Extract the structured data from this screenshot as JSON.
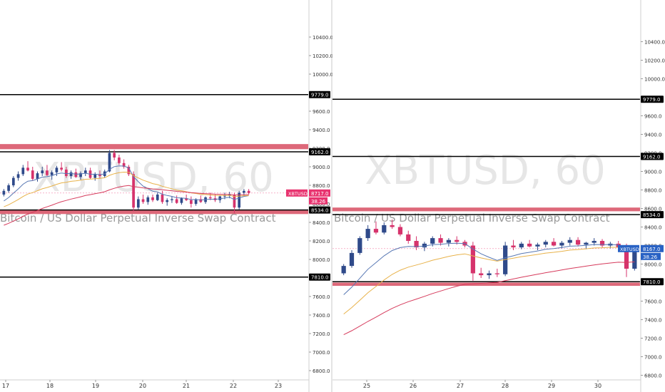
{
  "colors": {
    "up": "#2f4a8a",
    "down": "#d6336c",
    "ema_blue": "#5878b4",
    "ema_orange": "#e8b24a",
    "ema_red": "#d63b5c",
    "zone": "#d9586a",
    "level_line": "#000000",
    "tag_black": "#000000",
    "tag_pink": "#e8336f",
    "tag_blue": "#2962c4",
    "watermark": "#e6e6e6"
  },
  "icons": {
    "candle": "candlestick-icon"
  },
  "chart_data": [
    {
      "type": "candlestick",
      "watermark": "XBTUSD, 60",
      "subtitle": "Bitcoin / US Dollar Perpetual Inverse Swap Contract",
      "ylim": [
        6700,
        10800
      ],
      "yticks": [
        "10400.0",
        "10200.0",
        "10000.0",
        "9600.0",
        "9400.0",
        "9200.0",
        "9000.0",
        "8800.0",
        "8600.0",
        "8400.0",
        "8200.0",
        "8000.0",
        "7600.0",
        "7400.0",
        "7200.0",
        "7000.0",
        "6800.0"
      ],
      "xticks": [
        "17",
        "18",
        "19",
        "20",
        "21",
        "22",
        "23"
      ],
      "levels": [
        {
          "label": "9779.0",
          "value": 9779
        },
        {
          "label": "9162.0",
          "value": 9162
        },
        {
          "label": "8534.0",
          "value": 8534
        },
        {
          "label": "7810.0",
          "value": 7810
        }
      ],
      "zones": [
        [
          9190,
          9245
        ],
        [
          8490,
          8530
        ]
      ],
      "price_tag": {
        "symbol": "XBTUSD",
        "price": "8717.0",
        "sub": "38.26",
        "value": 8717
      },
      "candles": [
        [
          8700,
          8760,
          8680,
          8740
        ],
        [
          8740,
          8820,
          8720,
          8800
        ],
        [
          8800,
          8900,
          8780,
          8880
        ],
        [
          8880,
          8950,
          8850,
          8920
        ],
        [
          8920,
          9020,
          8900,
          8990
        ],
        [
          8990,
          9060,
          8950,
          8960
        ],
        [
          8960,
          9000,
          8850,
          8870
        ],
        [
          8870,
          8950,
          8840,
          8930
        ],
        [
          8930,
          9000,
          8900,
          8960
        ],
        [
          8960,
          9020,
          8900,
          8910
        ],
        [
          8910,
          8960,
          8860,
          8940
        ],
        [
          8940,
          9010,
          8900,
          8990
        ],
        [
          8990,
          9050,
          8950,
          8970
        ],
        [
          8970,
          9000,
          8880,
          8900
        ],
        [
          8900,
          8960,
          8870,
          8940
        ],
        [
          8940,
          8980,
          8880,
          8890
        ],
        [
          8890,
          8950,
          8860,
          8930
        ],
        [
          8930,
          8990,
          8900,
          8960
        ],
        [
          8960,
          8990,
          8870,
          8880
        ],
        [
          8880,
          8940,
          8850,
          8920
        ],
        [
          8920,
          8960,
          8870,
          8900
        ],
        [
          8900,
          8970,
          8880,
          8950
        ],
        [
          8950,
          9180,
          8940,
          9150
        ],
        [
          9150,
          9180,
          9070,
          9100
        ],
        [
          9100,
          9130,
          9020,
          9040
        ],
        [
          9040,
          9080,
          8980,
          9000
        ],
        [
          9000,
          9020,
          8900,
          8920
        ],
        [
          8920,
          8950,
          8520,
          8560
        ],
        [
          8560,
          8680,
          8540,
          8650
        ],
        [
          8650,
          8700,
          8600,
          8620
        ],
        [
          8620,
          8690,
          8590,
          8670
        ],
        [
          8670,
          8700,
          8620,
          8640
        ],
        [
          8640,
          8720,
          8630,
          8700
        ],
        [
          8700,
          8740,
          8600,
          8620
        ],
        [
          8620,
          8660,
          8580,
          8640
        ],
        [
          8640,
          8680,
          8610,
          8650
        ],
        [
          8650,
          8690,
          8600,
          8610
        ],
        [
          8610,
          8670,
          8590,
          8660
        ],
        [
          8660,
          8700,
          8630,
          8640
        ],
        [
          8640,
          8680,
          8560,
          8600
        ],
        [
          8600,
          8660,
          8580,
          8650
        ],
        [
          8650,
          8690,
          8610,
          8620
        ],
        [
          8620,
          8680,
          8600,
          8670
        ],
        [
          8670,
          8720,
          8640,
          8660
        ],
        [
          8660,
          8700,
          8620,
          8640
        ],
        [
          8640,
          8690,
          8610,
          8680
        ],
        [
          8680,
          8720,
          8650,
          8690
        ],
        [
          8690,
          8730,
          8660,
          8700
        ],
        [
          8700,
          8720,
          8500,
          8560
        ],
        [
          8560,
          8740,
          8540,
          8720
        ],
        [
          8720,
          8760,
          8690,
          8740
        ],
        [
          8740,
          8760,
          8700,
          8717
        ]
      ]
    },
    {
      "type": "candlestick",
      "watermark": "XBTUSD, 60",
      "subtitle": "Bitcoin / US Dollar Perpetual Inverse Swap Contract",
      "ylim": [
        6750,
        10850
      ],
      "yticks": [
        "10400.0",
        "10200.0",
        "10000.0",
        "9600.0",
        "9400.0",
        "9200.0",
        "9000.0",
        "8800.0",
        "8600.0",
        "8400.0",
        "8200.0",
        "8000.0",
        "7600.0",
        "7400.0",
        "7200.0",
        "7000.0",
        "6800.0"
      ],
      "xticks": [
        "25",
        "26",
        "27",
        "28",
        "29",
        "30"
      ],
      "levels": [
        {
          "label": "9779.0",
          "value": 9779
        },
        {
          "label": "9162.0",
          "value": 9162
        },
        {
          "label": "8534.0",
          "value": 8534
        },
        {
          "label": "7810.0",
          "value": 7810
        }
      ],
      "zones": [
        [
          8570,
          8610
        ],
        [
          7765,
          7800
        ]
      ],
      "price_tag": {
        "symbol": "XBTUSD",
        "price": "8167.0",
        "sub": "38.26",
        "value": 8167
      },
      "candles": [
        [
          7900,
          8000,
          7880,
          7980
        ],
        [
          7980,
          8150,
          7960,
          8120
        ],
        [
          8120,
          8300,
          8100,
          8280
        ],
        [
          8280,
          8420,
          8250,
          8380
        ],
        [
          8380,
          8460,
          8320,
          8340
        ],
        [
          8340,
          8450,
          8320,
          8420
        ],
        [
          8420,
          8480,
          8380,
          8400
        ],
        [
          8400,
          8430,
          8300,
          8320
        ],
        [
          8320,
          8360,
          8220,
          8250
        ],
        [
          8250,
          8300,
          8150,
          8180
        ],
        [
          8180,
          8240,
          8140,
          8220
        ],
        [
          8220,
          8300,
          8190,
          8280
        ],
        [
          8280,
          8320,
          8200,
          8230
        ],
        [
          8230,
          8280,
          8190,
          8260
        ],
        [
          8260,
          8300,
          8210,
          8240
        ],
        [
          8240,
          8260,
          8180,
          8200
        ],
        [
          8200,
          8240,
          7820,
          7900
        ],
        [
          7900,
          7960,
          7850,
          7880
        ],
        [
          7880,
          7930,
          7840,
          7900
        ],
        [
          7900,
          7950,
          7860,
          7890
        ],
        [
          7890,
          8240,
          7870,
          8200
        ],
        [
          8200,
          8260,
          8150,
          8180
        ],
        [
          8180,
          8240,
          8160,
          8220
        ],
        [
          8220,
          8260,
          8180,
          8190
        ],
        [
          8190,
          8230,
          8150,
          8210
        ],
        [
          8210,
          8260,
          8180,
          8240
        ],
        [
          8240,
          8280,
          8190,
          8200
        ],
        [
          8200,
          8250,
          8170,
          8230
        ],
        [
          8230,
          8290,
          8200,
          8260
        ],
        [
          8260,
          8290,
          8190,
          8210
        ],
        [
          8210,
          8240,
          8160,
          8230
        ],
        [
          8230,
          8280,
          8200,
          8250
        ],
        [
          8250,
          8270,
          8180,
          8200
        ],
        [
          8200,
          8240,
          8170,
          8220
        ],
        [
          8220,
          8250,
          8170,
          8180
        ],
        [
          8180,
          8220,
          7860,
          7950
        ],
        [
          7950,
          8170,
          7930,
          8167
        ]
      ]
    }
  ]
}
